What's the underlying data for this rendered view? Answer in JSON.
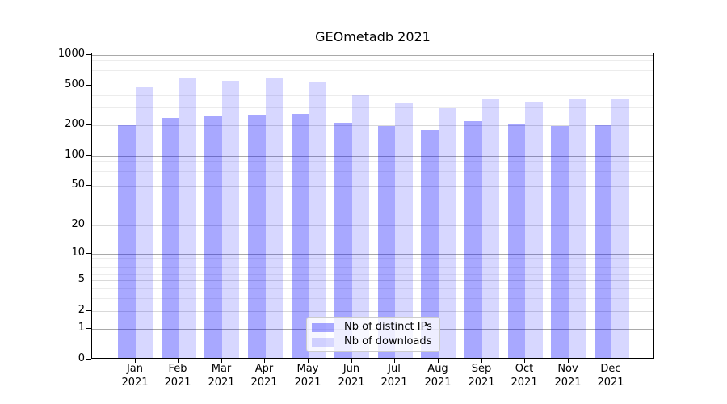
{
  "page": {
    "title": "GEOmetadb 2021"
  },
  "chart_data": {
    "type": "bar",
    "title": "GEOmetadb 2021",
    "categories": [
      "Jan",
      "Feb",
      "Mar",
      "Apr",
      "May",
      "Jun",
      "Jul",
      "Aug",
      "Sep",
      "Oct",
      "Nov",
      "Dec"
    ],
    "category_year": "2021",
    "series": [
      {
        "name": "Nb of distinct IPs",
        "color": "rgba(0,0,255,0.34)",
        "values": [
          195,
          229,
          241,
          248,
          251,
          206,
          192,
          175,
          214,
          200,
          192,
          196
        ]
      },
      {
        "name": "Nb of downloads",
        "color": "rgba(0,0,255,0.155)",
        "values": [
          465,
          570,
          530,
          563,
          526,
          394,
          323,
          286,
          350,
          334,
          348,
          347
        ]
      }
    ],
    "xlabel": "",
    "ylabel": "",
    "yscale": "log1p",
    "ylim": [
      0,
      1033
    ],
    "yticks": [
      1000,
      500,
      200,
      100,
      50,
      20,
      10,
      5,
      2,
      1,
      0
    ],
    "ygrid_major": [
      1,
      10,
      100,
      1000
    ],
    "ygrid_mid": [
      2,
      5,
      20,
      50,
      200,
      500
    ],
    "ygrid_minor": [
      3,
      4,
      6,
      7,
      8,
      9,
      30,
      40,
      60,
      70,
      80,
      90,
      300,
      400,
      600,
      700,
      800,
      900
    ],
    "grid": true,
    "legend_position": "inside-bottom-center",
    "colors": {
      "bar_distinct_ips": "rgba(0,0,255,0.34)",
      "bar_downloads": "rgba(0,0,255,0.155)",
      "grid_major": "#a9a9a9",
      "grid_mid": "#d9d9d9",
      "grid_minor": "#ececec",
      "axis": "#000000",
      "legend_border": "#cccccc"
    }
  }
}
